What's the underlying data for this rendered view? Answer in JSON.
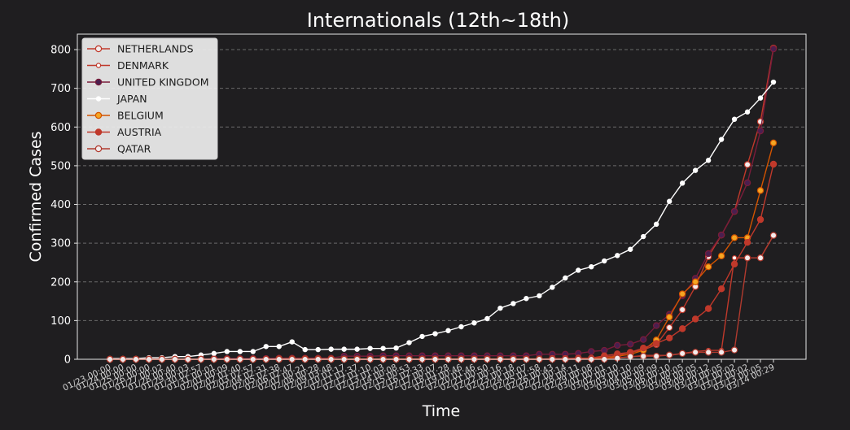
{
  "chart_data": {
    "type": "line",
    "title": "Internationals (12th~18th)",
    "xlabel": "Time",
    "ylabel": "Confirmed Cases",
    "ylim": [
      0,
      840
    ],
    "yticks": [
      0,
      100,
      200,
      300,
      400,
      500,
      600,
      700,
      800
    ],
    "grid": "horizontal dashed",
    "legend_position": "top-left",
    "background": "#1f1e20",
    "categories": [
      "01/23 00:00",
      "01/24 00:00",
      "01/25 00:00",
      "01/26 00:00",
      "01/27 00:02",
      "01/28 00:40",
      "01/29 00:03",
      "01/30 02:57",
      "01/31 00:01",
      "02/01 00:09",
      "02/02 01:40",
      "02/03 02:57",
      "02/04 02:31",
      "02/05 02:38",
      "02/06 02:47",
      "02/07 00:21",
      "02/08 00:28",
      "02/09 03:48",
      "02/10 01:17",
      "02/11 01:37",
      "02/12 01:10",
      "02/13 01:03",
      "02/14 00:08",
      "02/15 00:53",
      "02/16 02:33",
      "02/17 00:07",
      "02/18 01:28",
      "02/19 00:46",
      "02/20 01:46",
      "02/21 00:50",
      "02/22 00:16",
      "02/23 00:18",
      "02/24 00:07",
      "02/25 01:58",
      "02/26 00:43",
      "02/27 00:14",
      "02/28 00:11",
      "02/29 00:08",
      "03/01 00:01",
      "03/02 00:10",
      "03/03 00:10",
      "03/04 00:09",
      "03/05 00:09",
      "03/06 00:10",
      "03/07 00:05",
      "03/08 00:05",
      "03/09 00:12",
      "03/10 00:05",
      "03/11 00:02",
      "03/12 00:02",
      "03/13 00:05",
      "03/14 00:29"
    ],
    "tick_labels": [
      "01/23 00:00",
      "01/24 00:00",
      "01/25 00:00",
      "01/26 00:00",
      "01/27 00:02",
      "01/28 00:40",
      "01/29 00:03",
      "01/30 02:57",
      "01/31 00:01",
      "02/01 00:09",
      "02/02 01:40",
      "02/03 02:57",
      "02/04 02:31",
      "02/05 02:38",
      "02/06 02:47",
      "02/07 00:21",
      "02/08 00:28",
      "02/09 03:48",
      "02/10 01:17",
      "02/11 01:37",
      "02/12 01:10",
      "02/13 01:03",
      "02/14 00:08",
      "02/15 00:53",
      "02/16 02:33",
      "02/17 00:07",
      "02/18 01:28",
      "02/19 00:46",
      "02/20 01:46",
      "02/21 00:50",
      "02/22 00:16",
      "02/23 00:18",
      "02/24 00:07",
      "02/25 01:58",
      "02/26 00:43",
      "02/27 00:14",
      "02/28 00:11",
      "02/29 00:08",
      "03/01 00:01",
      "03/02 00:10",
      "03/03 00:10",
      "03/04 00:09",
      "03/05 00:09",
      "03/06 00:10",
      "03/07 00:05",
      "03/08 00:05",
      "03/09 00:12",
      "03/10 00:05",
      "03/11 00:02",
      "03/12 00:02",
      "03/13 00:05",
      "03/14 00:29"
    ],
    "series": [
      {
        "name": "NETHERLANDS",
        "line_color": "#c0392b",
        "marker_fill": "#f4ecec",
        "marker_size": "large",
        "values": [
          0,
          0,
          0,
          0,
          0,
          0,
          0,
          0,
          0,
          0,
          0,
          0,
          0,
          0,
          0,
          0,
          0,
          0,
          0,
          0,
          0,
          0,
          0,
          0,
          0,
          0,
          0,
          0,
          0,
          0,
          0,
          0,
          0,
          0,
          0,
          0,
          1,
          2,
          6,
          10,
          18,
          24,
          38,
          82,
          128,
          188,
          265,
          321,
          382,
          503,
          614,
          804
        ]
      },
      {
        "name": "DENMARK",
        "line_color": "#c0392b",
        "marker_fill": "#ffffff",
        "marker_size": "small",
        "values": [
          0,
          0,
          0,
          0,
          0,
          0,
          0,
          0,
          0,
          0,
          0,
          0,
          0,
          0,
          0,
          0,
          0,
          0,
          0,
          0,
          0,
          0,
          0,
          0,
          0,
          0,
          0,
          0,
          0,
          0,
          0,
          0,
          0,
          0,
          0,
          1,
          1,
          2,
          3,
          4,
          6,
          10,
          10,
          10,
          15,
          20,
          23,
          23,
          262,
          262,
          262,
          320
        ]
      },
      {
        "name": "UNITED KINGDOM",
        "line_color": "#7a1c3a",
        "marker_fill": "#4a1f4f",
        "marker_size": "large",
        "values": [
          0,
          0,
          0,
          0,
          0,
          0,
          0,
          0,
          2,
          2,
          2,
          2,
          2,
          3,
          3,
          3,
          3,
          3,
          8,
          8,
          8,
          9,
          9,
          9,
          9,
          9,
          9,
          9,
          9,
          9,
          9,
          9,
          9,
          13,
          13,
          13,
          15,
          20,
          23,
          36,
          39,
          51,
          87,
          116,
          164,
          209,
          273,
          321,
          382,
          456,
          590,
          802
        ]
      },
      {
        "name": "JAPAN",
        "line_color": "#ffffff",
        "marker_fill": "#ffffff",
        "marker_size": "small",
        "values": [
          2,
          2,
          2,
          4,
          4,
          7,
          7,
          11,
          15,
          20,
          20,
          20,
          33,
          33,
          45,
          25,
          25,
          26,
          26,
          26,
          28,
          28,
          29,
          43,
          59,
          66,
          74,
          84,
          94,
          105,
          132,
          144,
          157,
          164,
          186,
          210,
          230,
          239,
          254,
          268,
          284,
          317,
          349,
          408,
          455,
          488,
          514,
          568,
          620,
          639,
          675,
          716
        ]
      },
      {
        "name": "BELGIUM",
        "line_color": "#d35400",
        "marker_fill": "#f5a623",
        "marker_size": "large",
        "values": [
          0,
          0,
          0,
          0,
          0,
          0,
          0,
          0,
          0,
          0,
          0,
          0,
          0,
          1,
          1,
          1,
          1,
          1,
          1,
          1,
          1,
          1,
          1,
          1,
          1,
          1,
          1,
          1,
          1,
          1,
          1,
          1,
          1,
          1,
          1,
          1,
          1,
          1,
          2,
          8,
          13,
          23,
          50,
          109,
          169,
          200,
          239,
          267,
          314,
          314,
          436,
          559
        ]
      },
      {
        "name": "AUSTRIA",
        "line_color": "#c0392b",
        "marker_fill": "#c0392b",
        "marker_size": "large",
        "values": [
          0,
          0,
          0,
          0,
          0,
          0,
          0,
          0,
          0,
          0,
          0,
          0,
          0,
          0,
          0,
          0,
          0,
          0,
          0,
          0,
          0,
          0,
          0,
          0,
          0,
          0,
          0,
          0,
          0,
          0,
          0,
          0,
          0,
          0,
          2,
          2,
          3,
          3,
          9,
          14,
          18,
          29,
          41,
          55,
          79,
          104,
          131,
          182,
          246,
          302,
          361,
          504
        ]
      },
      {
        "name": "QATAR",
        "line_color": "#b03a2e",
        "marker_fill": "#f4ecec",
        "marker_size": "large",
        "values": [
          0,
          0,
          0,
          0,
          0,
          0,
          0,
          0,
          0,
          0,
          0,
          0,
          0,
          0,
          0,
          0,
          0,
          0,
          0,
          0,
          0,
          0,
          0,
          0,
          0,
          0,
          0,
          0,
          0,
          0,
          0,
          0,
          0,
          0,
          0,
          0,
          0,
          0,
          0,
          3,
          7,
          8,
          8,
          11,
          15,
          18,
          18,
          18,
          24,
          262,
          262,
          320
        ]
      }
    ]
  }
}
